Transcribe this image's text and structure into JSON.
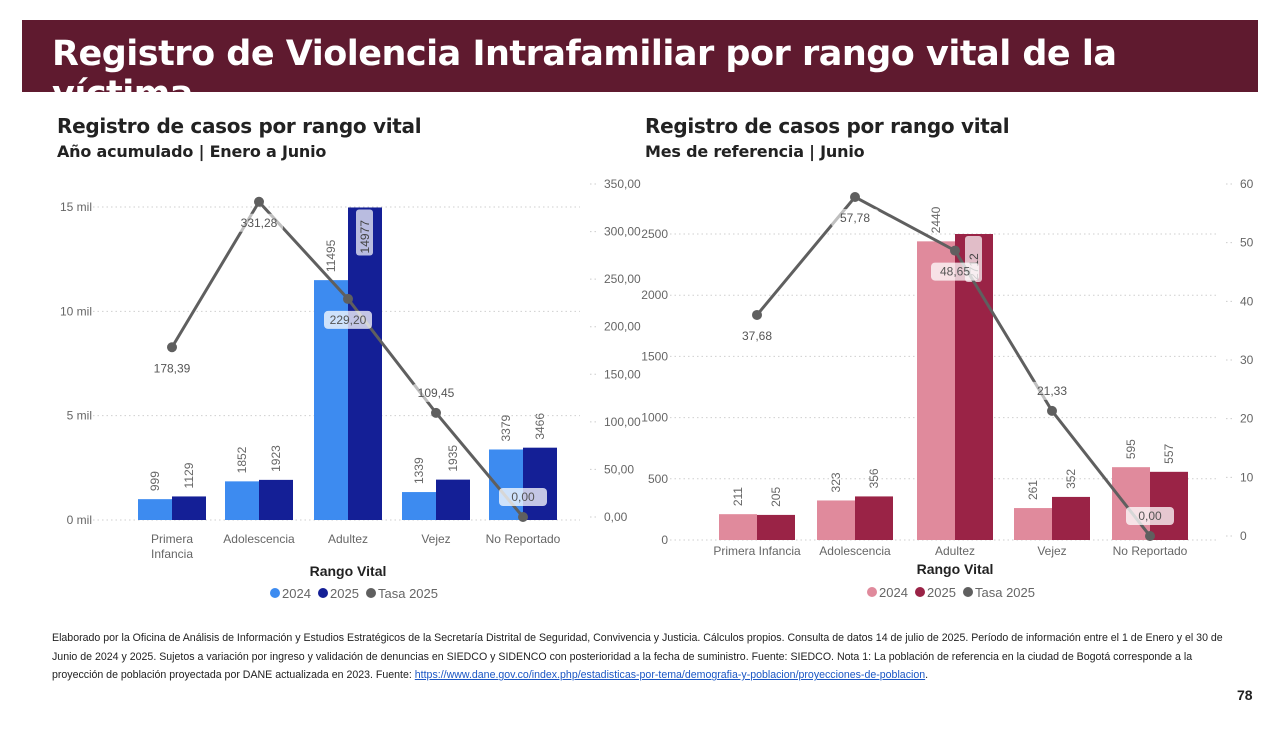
{
  "header": {
    "title": "Registro de Violencia Intrafamiliar por rango vital de la víctima"
  },
  "left_panel": {
    "title": "Registro de casos por rango vital",
    "subtitle": "Año acumulado | Enero a Junio"
  },
  "right_panel": {
    "title": "Registro de casos por rango vital",
    "subtitle": "Mes de referencia | Junio"
  },
  "chart_data": [
    {
      "type": "bar+line",
      "categories": [
        "Primera Infancia",
        "Adolescencia",
        "Adultez",
        "Vejez",
        "No Reportado"
      ],
      "category_labels": [
        [
          "Primera",
          "Infancia"
        ],
        [
          "Adolescencia"
        ],
        [
          "Adultez"
        ],
        [
          "Vejez"
        ],
        [
          "No Reportado"
        ]
      ],
      "xlabel": "Rango Vital",
      "y_ticks": [
        "0 mil",
        "5 mil",
        "10 mil",
        "15 mil"
      ],
      "y_tick_values": [
        0,
        5000,
        10000,
        15000
      ],
      "ylim": [
        0,
        15000
      ],
      "y2_ticks": [
        "0,00",
        "50,00",
        "100,00",
        "150,00",
        "200,00",
        "250,00",
        "300,00",
        "350,00"
      ],
      "y2_tick_values": [
        0,
        50,
        100,
        150,
        200,
        250,
        300,
        350
      ],
      "y2lim": [
        0,
        350
      ],
      "grid": true,
      "legend_position": "bottom",
      "series": [
        {
          "name": "2024",
          "kind": "bar",
          "color": "#3d8bf0",
          "values": [
            999,
            1852,
            11495,
            1339,
            3379
          ],
          "labels": [
            "999",
            "1852",
            "11495",
            "1339",
            "3379"
          ]
        },
        {
          "name": "2025",
          "kind": "bar",
          "color": "#141f96",
          "values": [
            1129,
            1923,
            14977,
            1935,
            3466
          ],
          "labels": [
            "1129",
            "1923",
            "14977",
            "1935",
            "3466"
          ]
        },
        {
          "name": "Tasa 2025",
          "kind": "line",
          "axis": "right",
          "color": "#5f5f5f",
          "values": [
            178.39,
            331.28,
            229.2,
            109.45,
            0.0
          ],
          "labels": [
            "178,39",
            "331,28",
            "229,20",
            "109,45",
            "0,00"
          ]
        }
      ]
    },
    {
      "type": "bar+line",
      "categories": [
        "Primera Infancia",
        "Adolescencia",
        "Adultez",
        "Vejez",
        "No Reportado"
      ],
      "category_labels": [
        [
          "Primera Infancia"
        ],
        [
          "Adolescencia"
        ],
        [
          "Adultez"
        ],
        [
          "Vejez"
        ],
        [
          "No Reportado"
        ]
      ],
      "xlabel": "Rango Vital",
      "y_ticks": [
        "0",
        "500",
        "1000",
        "1500",
        "2000",
        "2500"
      ],
      "y_tick_values": [
        0,
        500,
        1000,
        1500,
        2000,
        2500
      ],
      "ylim": [
        0,
        2712
      ],
      "y2_ticks": [
        "0",
        "10",
        "20",
        "30",
        "40",
        "50",
        "60"
      ],
      "y2_tick_values": [
        0,
        10,
        20,
        30,
        40,
        50,
        60
      ],
      "y2lim": [
        0,
        60
      ],
      "grid": true,
      "legend_position": "bottom",
      "series": [
        {
          "name": "2024",
          "kind": "bar",
          "color": "#e08a9c",
          "values": [
            211,
            323,
            2440,
            261,
            595
          ],
          "labels": [
            "211",
            "323",
            "2440",
            "261",
            "595"
          ]
        },
        {
          "name": "2025",
          "kind": "bar",
          "color": "#9a2346",
          "values": [
            205,
            356,
            2712,
            352,
            557
          ],
          "labels": [
            "205",
            "356",
            "2712",
            "352",
            "557"
          ]
        },
        {
          "name": "Tasa 2025",
          "kind": "line",
          "axis": "right",
          "color": "#5f5f5f",
          "values": [
            37.68,
            57.78,
            48.65,
            21.33,
            0.0
          ],
          "labels": [
            "37,68",
            "57,78",
            "48,65",
            "21,33",
            "0,00"
          ]
        }
      ]
    }
  ],
  "footer": {
    "text": "Elaborado por la Oficina de Análisis de Información y Estudios Estratégicos de la Secretaría Distrital de Seguridad, Convivencia y Justicia. Cálculos propios. Consulta de datos 14 de julio de 2025. Período de información entre el 1 de Enero y el 30 de Junio de 2024 y 2025. Sujetos a variación por ingreso y validación de denuncias en SIEDCO y SIDENCO con posterioridad a la fecha de suministro. Fuente: SIEDCO. Nota 1: La población de referencia en la ciudad de Bogotá corresponde a la proyección de población proyectada por DANE actualizada en 2023. Fuente: ",
    "link": "https://www.dane.gov.co/index.php/estadisticas-por-tema/demografia-y-poblacion/proyecciones-de-poblacion",
    "link_suffix": ".",
    "page_number": "78"
  }
}
